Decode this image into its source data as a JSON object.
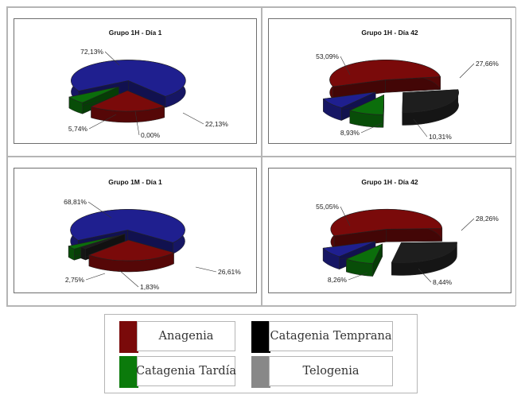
{
  "colors": {
    "anagenia": "#7a0a0a",
    "catagenia_temprana": "#1e1e1e",
    "catagenia_tardia": "#0b6e0b",
    "telogenia": "#1f1f8f"
  },
  "chart_data": [
    {
      "type": "pie",
      "title": "Grupo 1H - Día 1",
      "slices": [
        {
          "category": "Telogenia",
          "value": 72.13,
          "label": "72,13%"
        },
        {
          "category": "Anagenia",
          "value": 22.13,
          "label": "22,13%"
        },
        {
          "category": "Catagenia Temprana",
          "value": 0.0,
          "label": "0,00%"
        },
        {
          "category": "Catagenia Tardía",
          "value": 5.74,
          "label": "5,74%"
        }
      ]
    },
    {
      "type": "pie",
      "title": "Grupo 1H - Día 42",
      "slices": [
        {
          "category": "Anagenia",
          "value": 53.09,
          "label": "53,09%"
        },
        {
          "category": "Catagenia Temprana",
          "value": 27.66,
          "label": "27,66%"
        },
        {
          "category": "Catagenia Tardía",
          "value": 10.31,
          "label": "10,31%"
        },
        {
          "category": "Telogenia",
          "value": 8.93,
          "label": "8,93%"
        }
      ]
    },
    {
      "type": "pie",
      "title": "Grupo 1M - Día 1",
      "slices": [
        {
          "category": "Telogenia",
          "value": 68.81,
          "label": "68,81%"
        },
        {
          "category": "Anagenia",
          "value": 26.61,
          "label": "26,61%"
        },
        {
          "category": "Catagenia Temprana",
          "value": 1.83,
          "label": "1,83%"
        },
        {
          "category": "Catagenia Tardía",
          "value": 2.75,
          "label": "2,75%"
        }
      ]
    },
    {
      "type": "pie",
      "title": "Grupo 1H - Día 42",
      "slices": [
        {
          "category": "Anagenia",
          "value": 55.05,
          "label": "55,05%"
        },
        {
          "category": "Catagenia Temprana",
          "value": 28.26,
          "label": "28,26%"
        },
        {
          "category": "Catagenia Tardía",
          "value": 8.44,
          "label": "8,44%"
        },
        {
          "category": "Telogenia",
          "value": 8.26,
          "label": "8,26%"
        }
      ]
    }
  ],
  "legend": {
    "items": [
      {
        "label": "Anagenia",
        "color": "#7a0a0a"
      },
      {
        "label": "Catagenia Temprana",
        "color": "#000000"
      },
      {
        "label": "Catagenia Tardía",
        "color": "#0b7a0b"
      },
      {
        "label": "Telogenia",
        "color": "#888888"
      }
    ]
  }
}
